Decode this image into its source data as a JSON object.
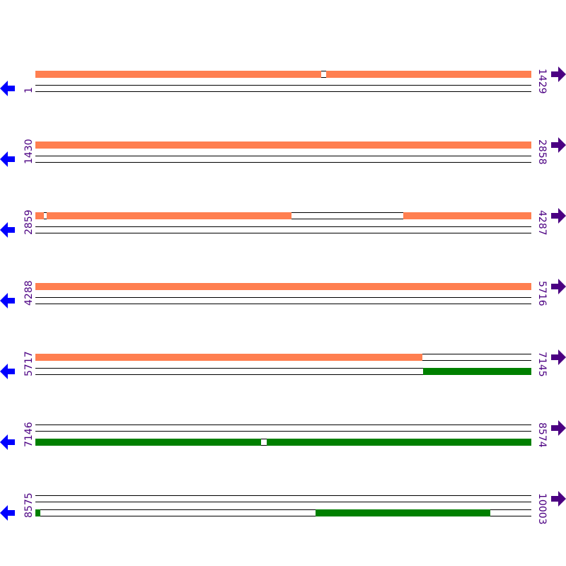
{
  "colors": {
    "forward_feature": "#ff7f50",
    "reverse_feature": "#008000",
    "left_arrow": "#0000ff",
    "right_arrow": "#4b0082",
    "label": "#4b0082"
  },
  "icons": {
    "left": "arrow-left-icon",
    "right": "arrow-right-icon"
  },
  "rows": [
    {
      "start": "1",
      "end": "1429",
      "forward": [
        [
          1,
          823
        ],
        [
          838,
          1429
        ]
      ],
      "reverse": []
    },
    {
      "start": "1430",
      "end": "2858",
      "forward": [
        [
          1430,
          2858
        ]
      ],
      "reverse": []
    },
    {
      "start": "2859",
      "end": "4287",
      "forward": [
        [
          2859,
          2883
        ],
        [
          2891,
          3596
        ],
        [
          3920,
          4287
        ]
      ],
      "reverse": []
    },
    {
      "start": "4288",
      "end": "5716",
      "forward": [
        [
          4288,
          5716
        ]
      ],
      "reverse": []
    },
    {
      "start": "5717",
      "end": "7145",
      "forward": [
        [
          5717,
          6831
        ]
      ],
      "reverse": [
        [
          6835,
          7145
        ]
      ]
    },
    {
      "start": "7146",
      "end": "8574",
      "forward": [],
      "reverse": [
        [
          7146,
          7795
        ],
        [
          7813,
          8574
        ]
      ]
    },
    {
      "start": "8575",
      "end": "10003",
      "forward": [],
      "reverse": [
        [
          8575,
          8589
        ],
        [
          9383,
          9885
        ]
      ]
    }
  ]
}
